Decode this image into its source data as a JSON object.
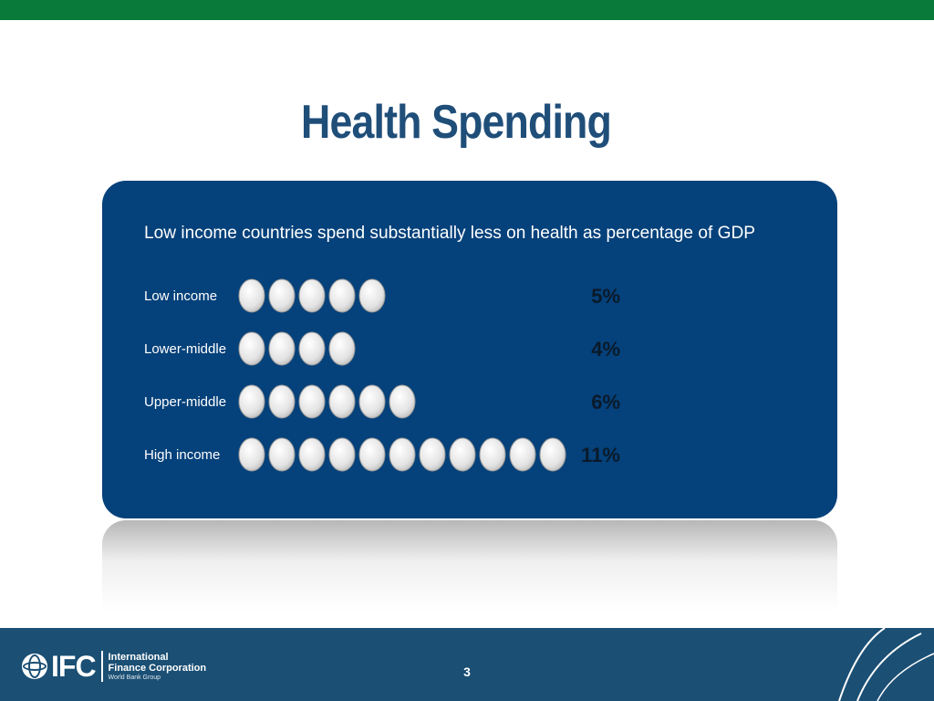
{
  "slide": {
    "title": "Health Spending",
    "page_number": "3"
  },
  "logo": {
    "mark": "IFC",
    "line1": "International",
    "line2": "Finance Corporation",
    "line3": "World Bank Group"
  },
  "colors": {
    "top_bar": "#0a7a3a",
    "title": "#1f4e79",
    "panel": "#05417a",
    "footer": "#1b4f74",
    "dot": "#e6e6e6",
    "value_text": "#0a1a2a"
  },
  "chart_data": {
    "type": "pictogram",
    "title": "Low income countries spend substantially less on health as percentage of GDP",
    "unit": "% of GDP",
    "categories": [
      "Low income",
      "Lower-middle",
      "Upper-middle",
      "High income"
    ],
    "values": [
      5,
      4,
      6,
      11
    ],
    "value_labels": [
      "5%",
      "4%",
      "6%",
      "11%"
    ],
    "icon": "circle-dot"
  }
}
